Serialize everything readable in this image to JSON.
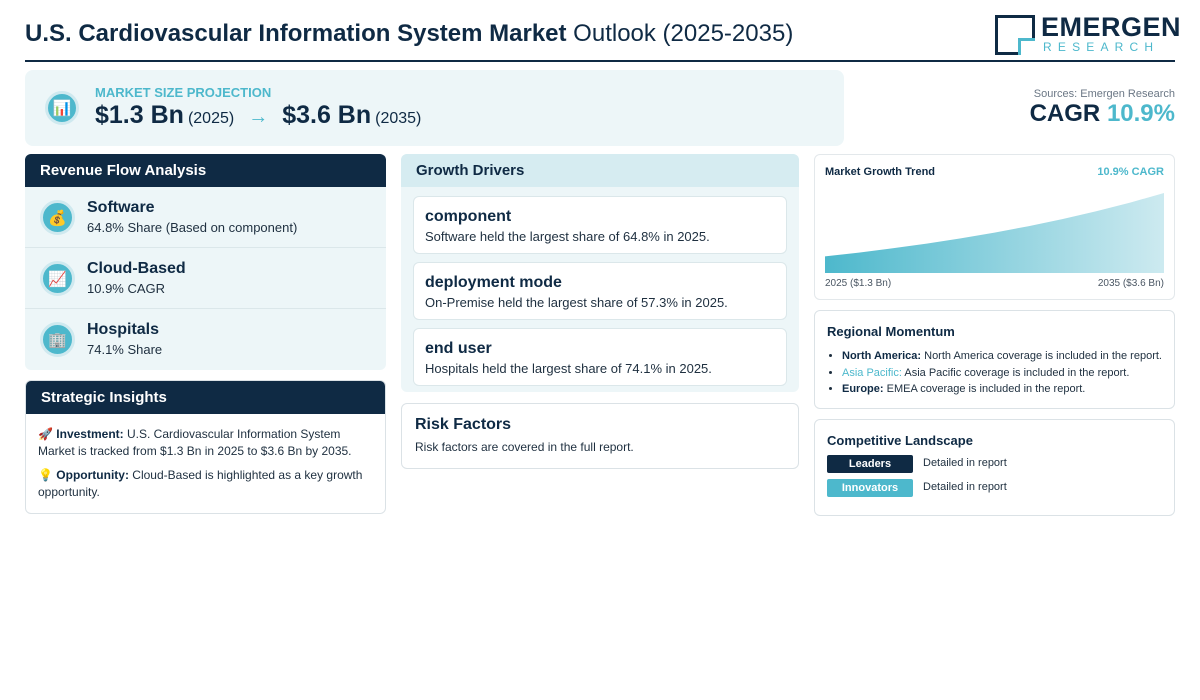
{
  "header": {
    "title_bold": "U.S. Cardiovascular Information System Market",
    "title_light": "Outlook (2025-2035)",
    "logo_name": "EMERGEN",
    "logo_sub": "RESEARCH"
  },
  "market": {
    "icon": "bar-chart-icon",
    "label": "MARKET SIZE PROJECTION",
    "start_value": "$1.3 Bn",
    "start_year": "(2025)",
    "arrow": "→",
    "end_value": "$3.6 Bn",
    "end_year": "(2035)"
  },
  "summary": {
    "source": "Sources: Emergen Research",
    "cagr_label": "CAGR",
    "cagr_value": "10.9%"
  },
  "revenue": {
    "title": "Revenue Flow Analysis",
    "items": [
      {
        "icon": "money-bag-icon",
        "title": "Software",
        "sub": "64.8% Share (Based on component)"
      },
      {
        "icon": "trend-chart-icon",
        "title": "Cloud-Based",
        "sub": "10.9% CAGR"
      },
      {
        "icon": "hospital-building-icon",
        "title": "Hospitals",
        "sub": "74.1% Share"
      }
    ]
  },
  "insights": {
    "title": "Strategic Insights",
    "investment_label": "Investment:",
    "investment_text": "U.S. Cardiovascular Information System Market is tracked from $1.3 Bn in 2025 to $3.6 Bn by 2035.",
    "opportunity_label": "Opportunity:",
    "opportunity_text": "Cloud-Based is highlighted as a key growth opportunity."
  },
  "drivers": {
    "title": "Growth Drivers",
    "items": [
      {
        "title": "component",
        "desc": "Software held the largest share of 64.8% in 2025."
      },
      {
        "title": "deployment mode",
        "desc": "On-Premise held the largest share of 57.3% in 2025."
      },
      {
        "title": "end user",
        "desc": "Hospitals held the largest share of 74.1% in 2025."
      }
    ]
  },
  "risk": {
    "title": "Risk Factors",
    "desc": "Risk factors are covered in the full report."
  },
  "trend": {
    "title": "Market Growth Trend",
    "cagr": "10.9% CAGR",
    "start_label": "2025 ($1.3 Bn)",
    "end_label": "2035 ($3.6 Bn)"
  },
  "chart_data": {
    "type": "area",
    "title": "Market Growth Trend",
    "x": [
      2025,
      2035
    ],
    "values": [
      1.3,
      3.6
    ],
    "annotation": "10.9% CAGR"
  },
  "regional": {
    "title": "Regional Momentum",
    "items": [
      {
        "label": "North America:",
        "text": "North America coverage is included in the report."
      },
      {
        "label": "Asia Pacific:",
        "text": "Asia Pacific coverage is included in the report."
      },
      {
        "label": "Europe:",
        "text": "EMEA coverage is included in the report."
      }
    ]
  },
  "competitive": {
    "title": "Competitive Landscape",
    "rows": [
      {
        "badge": "Leaders",
        "text": "Detailed in report",
        "color": "#0f2a44"
      },
      {
        "badge": "Innovators",
        "text": "Detailed in report",
        "color": "#4db8cc"
      }
    ]
  },
  "colors": {
    "navy": "#0f2a44",
    "teal": "#4db8cc",
    "panel": "#edf6f8"
  }
}
